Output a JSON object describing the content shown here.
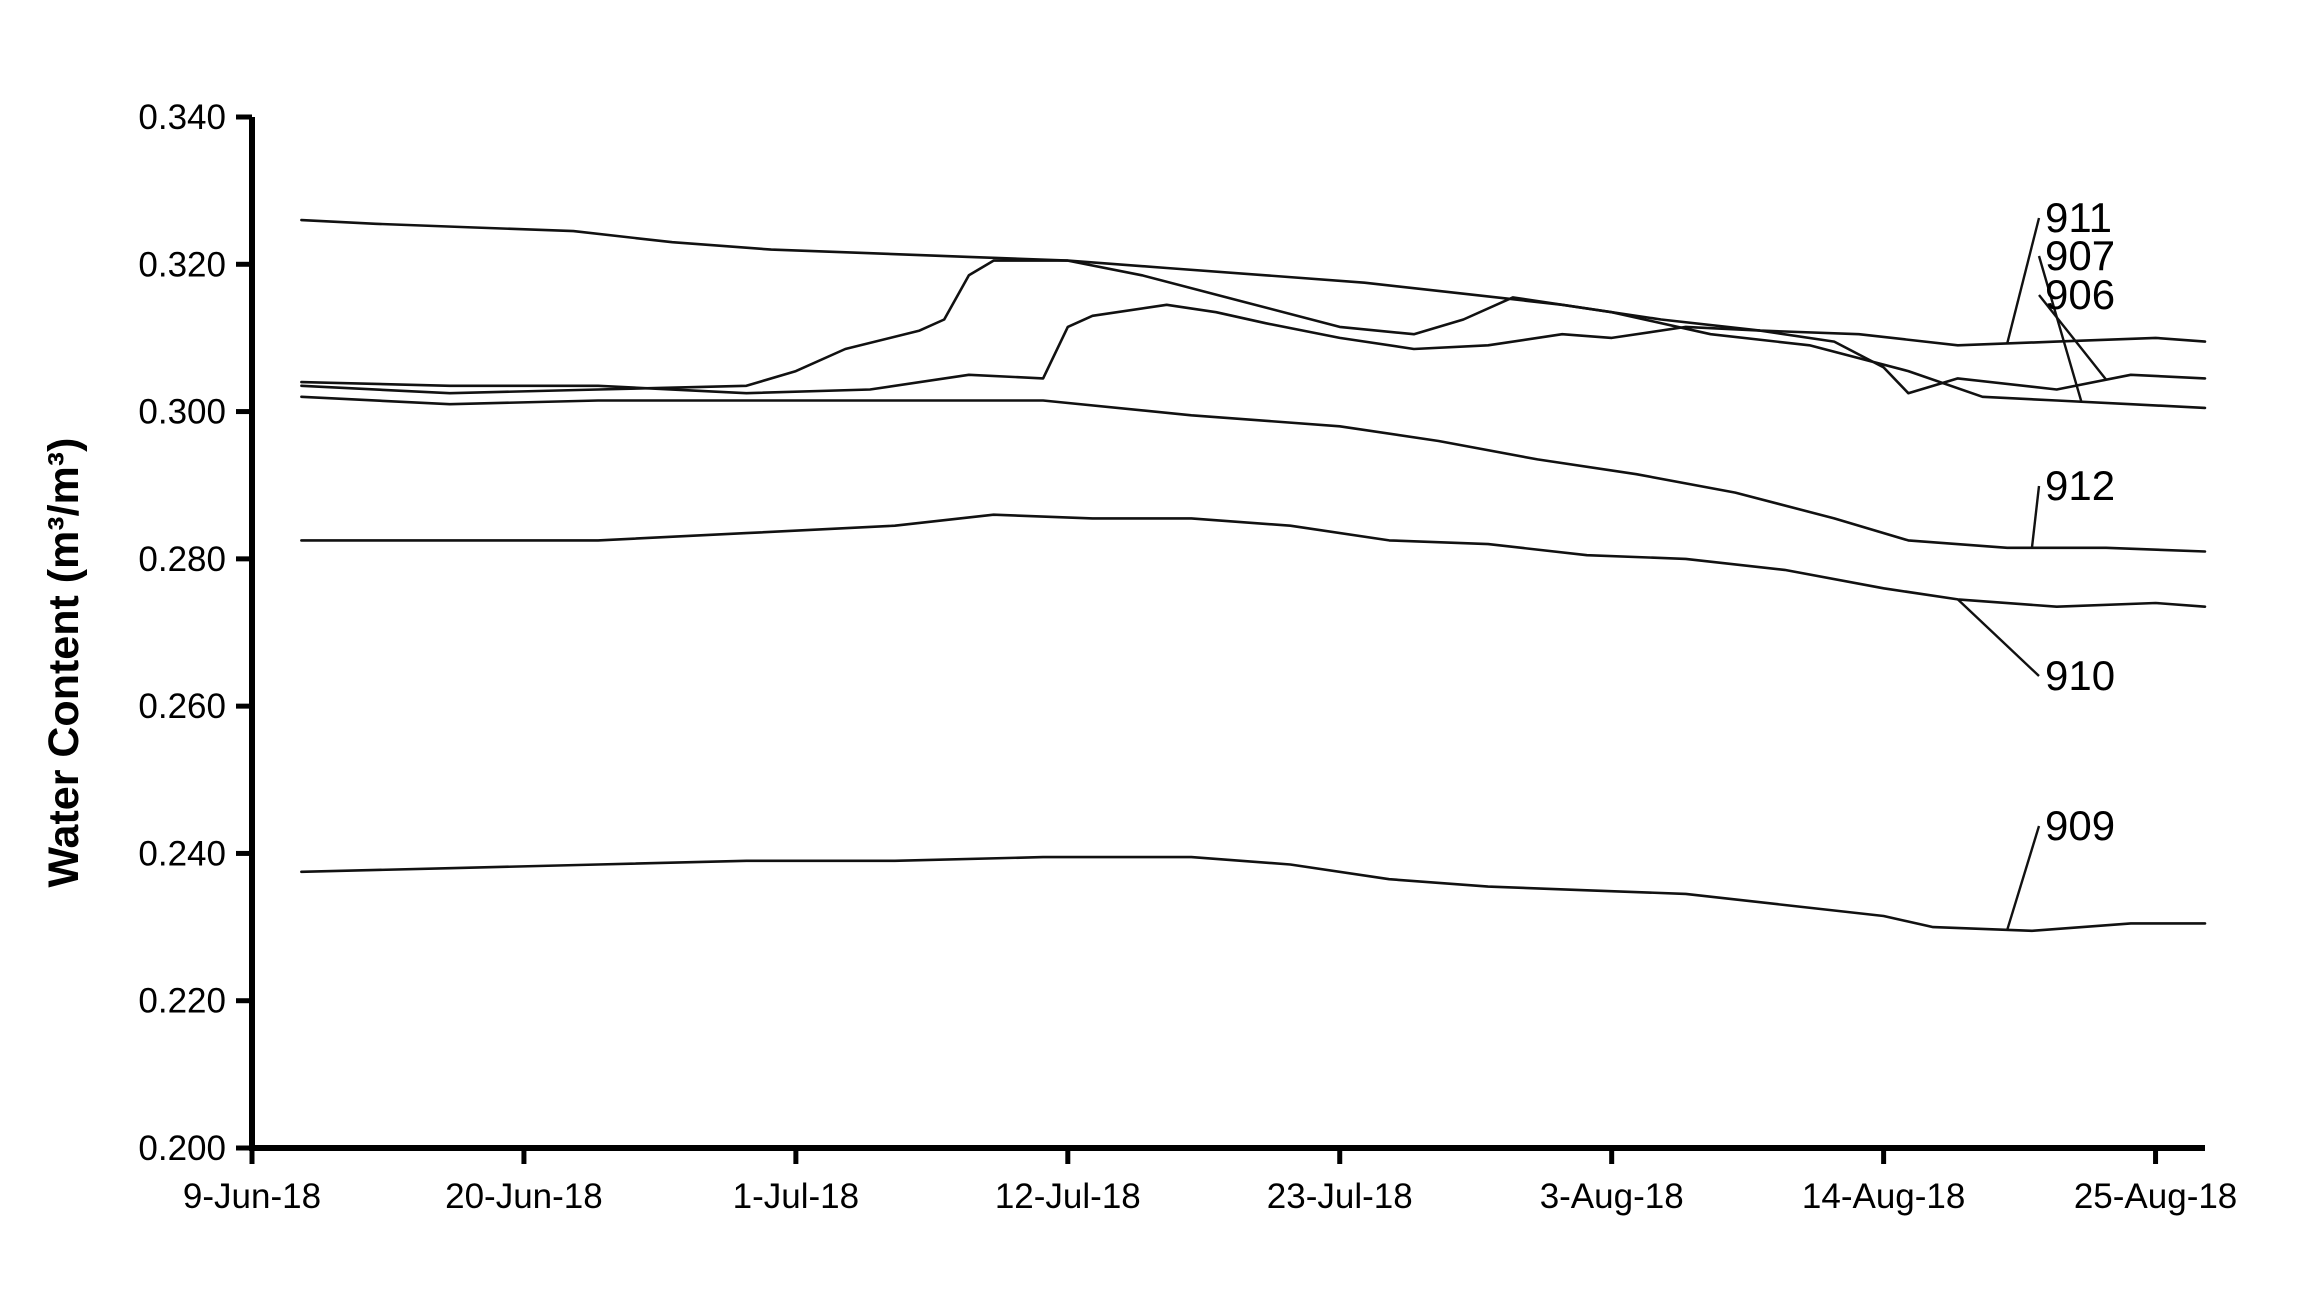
{
  "chart_data": {
    "type": "line",
    "title": "",
    "xlabel": "",
    "ylabel": "Water Content (m³/m³)",
    "x_tick_labels": [
      "9-Jun-18",
      "20-Jun-18",
      "1-Jul-18",
      "12-Jul-18",
      "23-Jul-18",
      "3-Aug-18",
      "14-Aug-18",
      "25-Aug-18"
    ],
    "x_tick_dates": [
      "2018-06-09",
      "2018-06-20",
      "2018-07-01",
      "2018-07-12",
      "2018-07-23",
      "2018-08-03",
      "2018-08-14",
      "2018-08-25"
    ],
    "xlim": [
      "2018-06-09",
      "2018-08-27"
    ],
    "y_tick_labels": [
      "0.200",
      "0.220",
      "0.240",
      "0.260",
      "0.280",
      "0.300",
      "0.320",
      "0.340"
    ],
    "ylim": [
      0.2,
      0.34
    ],
    "grid": false,
    "legend": "none",
    "series": [
      {
        "name": "911",
        "x": [
          "2018-06-11",
          "2018-06-14",
          "2018-06-18",
          "2018-06-22",
          "2018-06-26",
          "2018-06-30",
          "2018-07-04",
          "2018-07-08",
          "2018-07-12",
          "2018-07-16",
          "2018-07-20",
          "2018-07-24",
          "2018-07-28",
          "2018-08-01",
          "2018-08-05",
          "2018-08-09",
          "2018-08-13",
          "2018-08-17",
          "2018-08-21",
          "2018-08-25",
          "2018-08-27"
        ],
        "values": [
          0.326,
          0.3255,
          0.325,
          0.3245,
          0.323,
          0.322,
          0.3215,
          0.321,
          0.3205,
          0.3195,
          0.3185,
          0.3175,
          0.316,
          0.3145,
          0.3125,
          0.311,
          0.3105,
          0.309,
          0.3095,
          0.31,
          0.3095
        ]
      },
      {
        "name": "907",
        "x": [
          "2018-06-11",
          "2018-06-17",
          "2018-06-23",
          "2018-06-29",
          "2018-07-01",
          "2018-07-03",
          "2018-07-06",
          "2018-07-07",
          "2018-07-08",
          "2018-07-09",
          "2018-07-10",
          "2018-07-12",
          "2018-07-15",
          "2018-07-19",
          "2018-07-23",
          "2018-07-26",
          "2018-07-28",
          "2018-07-30",
          "2018-08-03",
          "2018-08-07",
          "2018-08-11",
          "2018-08-15",
          "2018-08-18",
          "2018-08-21",
          "2018-08-24",
          "2018-08-27"
        ],
        "values": [
          0.3035,
          0.3025,
          0.303,
          0.3035,
          0.3055,
          0.3085,
          0.311,
          0.3125,
          0.3185,
          0.3205,
          0.3205,
          0.3205,
          0.3185,
          0.315,
          0.3115,
          0.3105,
          0.3125,
          0.3155,
          0.3135,
          0.3105,
          0.309,
          0.3055,
          0.302,
          0.3015,
          0.301,
          0.3005
        ]
      },
      {
        "name": "906",
        "x": [
          "2018-06-11",
          "2018-06-17",
          "2018-06-23",
          "2018-06-29",
          "2018-07-04",
          "2018-07-08",
          "2018-07-11",
          "2018-07-12",
          "2018-07-13",
          "2018-07-16",
          "2018-07-18",
          "2018-07-20",
          "2018-07-23",
          "2018-07-26",
          "2018-07-29",
          "2018-08-01",
          "2018-08-03",
          "2018-08-06",
          "2018-08-09",
          "2018-08-12",
          "2018-08-14",
          "2018-08-15",
          "2018-08-17",
          "2018-08-21",
          "2018-08-24",
          "2018-08-27"
        ],
        "values": [
          0.304,
          0.3035,
          0.3035,
          0.3025,
          0.303,
          0.305,
          0.3045,
          0.3115,
          0.313,
          0.3145,
          0.3135,
          0.312,
          0.31,
          0.3085,
          0.309,
          0.3105,
          0.31,
          0.3115,
          0.311,
          0.3095,
          0.306,
          0.3025,
          0.3045,
          0.303,
          0.305,
          0.3045
        ]
      },
      {
        "name": "912",
        "x": [
          "2018-06-11",
          "2018-06-17",
          "2018-06-23",
          "2018-06-29",
          "2018-07-05",
          "2018-07-11",
          "2018-07-17",
          "2018-07-23",
          "2018-07-27",
          "2018-07-31",
          "2018-08-04",
          "2018-08-08",
          "2018-08-12",
          "2018-08-15",
          "2018-08-19",
          "2018-08-23",
          "2018-08-27"
        ],
        "values": [
          0.302,
          0.301,
          0.3015,
          0.3015,
          0.3015,
          0.3015,
          0.2995,
          0.298,
          0.296,
          0.2935,
          0.2915,
          0.289,
          0.2855,
          0.2825,
          0.2815,
          0.2815,
          0.281
        ]
      },
      {
        "name": "910",
        "x": [
          "2018-06-11",
          "2018-06-17",
          "2018-06-23",
          "2018-06-29",
          "2018-07-05",
          "2018-07-09",
          "2018-07-13",
          "2018-07-17",
          "2018-07-21",
          "2018-07-25",
          "2018-07-29",
          "2018-08-02",
          "2018-08-06",
          "2018-08-10",
          "2018-08-14",
          "2018-08-17",
          "2018-08-21",
          "2018-08-25",
          "2018-08-27"
        ],
        "values": [
          0.2825,
          0.2825,
          0.2825,
          0.2835,
          0.2845,
          0.286,
          0.2855,
          0.2855,
          0.2845,
          0.2825,
          0.282,
          0.2805,
          0.28,
          0.2785,
          0.276,
          0.2745,
          0.2735,
          0.274,
          0.2735
        ]
      },
      {
        "name": "909",
        "x": [
          "2018-06-11",
          "2018-06-17",
          "2018-06-23",
          "2018-06-29",
          "2018-07-05",
          "2018-07-11",
          "2018-07-17",
          "2018-07-21",
          "2018-07-25",
          "2018-07-29",
          "2018-08-02",
          "2018-08-06",
          "2018-08-10",
          "2018-08-14",
          "2018-08-16",
          "2018-08-20",
          "2018-08-24",
          "2018-08-27"
        ],
        "values": [
          0.2375,
          0.238,
          0.2385,
          0.239,
          0.239,
          0.2395,
          0.2395,
          0.2385,
          0.2365,
          0.2355,
          0.235,
          0.2345,
          0.233,
          0.2315,
          0.23,
          0.2295,
          0.2305,
          0.2305
        ]
      }
    ],
    "annotations": [
      {
        "label": "911",
        "series": "911",
        "x": "2018-08-19"
      },
      {
        "label": "907",
        "series": "907",
        "x": "2018-08-22"
      },
      {
        "label": "906",
        "series": "906",
        "x": "2018-08-23"
      },
      {
        "label": "912",
        "series": "912",
        "x": "2018-08-20"
      },
      {
        "label": "910",
        "series": "910",
        "x": "2018-08-17"
      },
      {
        "label": "909",
        "series": "909",
        "x": "2018-08-19"
      }
    ]
  }
}
